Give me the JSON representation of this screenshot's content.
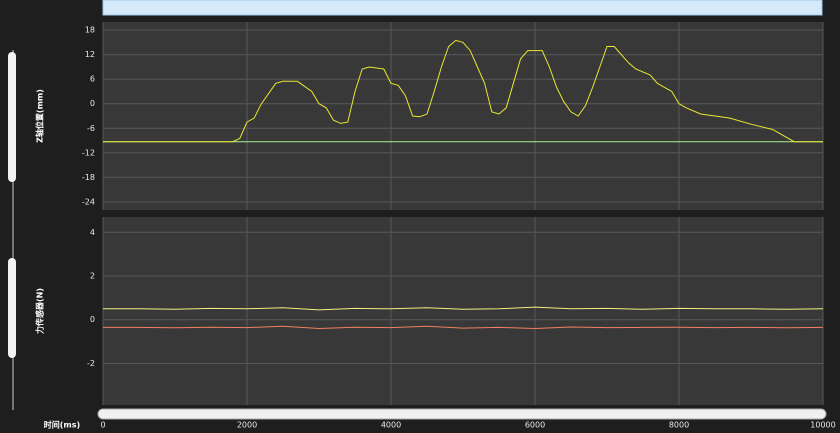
{
  "chart_data": [
    {
      "type": "line",
      "y_label": "Z轴位置(mm)",
      "x": [
        0,
        1800,
        1900,
        2000,
        2100,
        2200,
        2400,
        2500,
        2700,
        2900,
        3000,
        3100,
        3200,
        3300,
        3400,
        3500,
        3600,
        3700,
        3900,
        4000,
        4100,
        4200,
        4300,
        4400,
        4500,
        4600,
        4700,
        4800,
        4900,
        5000,
        5100,
        5200,
        5300,
        5400,
        5500,
        5600,
        5700,
        5800,
        5900,
        6100,
        6200,
        6300,
        6400,
        6500,
        6600,
        6700,
        6800,
        6900,
        7000,
        7100,
        7300,
        7400,
        7600,
        7700,
        7900,
        8000,
        8100,
        8300,
        8700,
        9000,
        9300,
        9600,
        10000
      ],
      "series": [
        {
          "color": "#e8e832",
          "values": [
            -9.3,
            -9.3,
            -8.5,
            -4.5,
            -3.5,
            0,
            5,
            5.5,
            5.5,
            3,
            0,
            -1,
            -4,
            -4.8,
            -4.5,
            3,
            8.5,
            9,
            8.5,
            5,
            4.5,
            2,
            -3,
            -3.2,
            -2.5,
            3,
            9,
            14,
            15.5,
            15,
            13,
            9,
            5,
            -2,
            -2.5,
            -1,
            5,
            11,
            13,
            13,
            9,
            4,
            0.5,
            -2,
            -3,
            -0.5,
            4,
            9,
            14,
            14,
            10,
            8.5,
            7,
            5,
            3,
            0,
            -1,
            -2.5,
            -3.5,
            -5,
            -6.3,
            -9.3,
            -9.3
          ]
        }
      ],
      "reference_line": {
        "value": -9.3,
        "color": "#a8f090"
      },
      "xlim": [
        0,
        10000
      ],
      "xticks": [
        0,
        2000,
        4000,
        6000,
        8000,
        10000
      ],
      "ylim": [
        -26,
        20
      ],
      "yticks": [
        18,
        12,
        6,
        0,
        -6,
        -12,
        -18,
        -24
      ],
      "grid": true
    },
    {
      "type": "line",
      "y_label": "力传感器(N)",
      "x_label": "时间(ms)",
      "x": [
        0,
        500,
        1000,
        1500,
        2000,
        2500,
        3000,
        3500,
        4000,
        4500,
        5000,
        5500,
        6000,
        6500,
        7000,
        7500,
        8000,
        8500,
        9000,
        9500,
        10000
      ],
      "series": [
        {
          "color": "#f0f080",
          "values": [
            0.5,
            0.5,
            0.48,
            0.52,
            0.5,
            0.55,
            0.45,
            0.52,
            0.5,
            0.55,
            0.48,
            0.5,
            0.58,
            0.5,
            0.52,
            0.48,
            0.52,
            0.5,
            0.5,
            0.48,
            0.5
          ]
        },
        {
          "color": "#f08060",
          "values": [
            -0.35,
            -0.35,
            -0.37,
            -0.34,
            -0.36,
            -0.3,
            -0.4,
            -0.34,
            -0.36,
            -0.3,
            -0.38,
            -0.35,
            -0.4,
            -0.33,
            -0.36,
            -0.35,
            -0.34,
            -0.36,
            -0.35,
            -0.37,
            -0.35
          ]
        }
      ],
      "xlim": [
        0,
        10000
      ],
      "xticks": [
        0,
        2000,
        4000,
        6000,
        8000,
        10000
      ],
      "ylim": [
        -3.9,
        4.7
      ],
      "yticks": [
        4,
        2,
        0,
        -2
      ],
      "grid": true
    }
  ]
}
